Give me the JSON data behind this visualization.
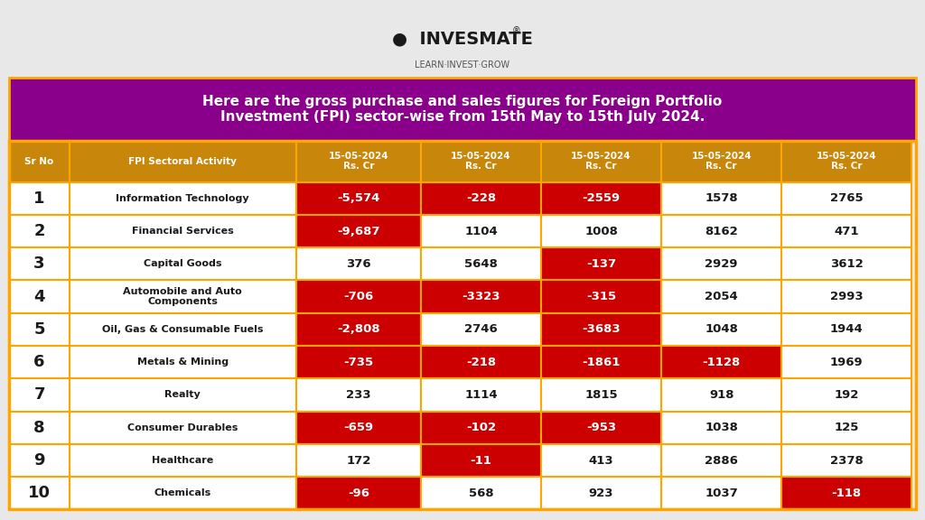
{
  "title": "Here are the gross purchase and sales figures for Foreign Portfolio\nInvestment (FPI) sector-wise from 15th May to 15th July 2024.",
  "header_bg": "#8B008B",
  "header_text_color": "#FFFFFF",
  "col_header_bg": "#C8860A",
  "col_header_text": "#FFFFFF",
  "row_bg": "#FFFFFF",
  "row_alt_bg": "#FFFFFF",
  "border_color": "#FFA500",
  "negative_bg": "#CC0000",
  "negative_text": "#FFFFFF",
  "positive_bg": "#FFFFFF",
  "positive_text": "#1A1A1A",
  "sr_no_col_bg": "#FFFFFF",
  "columns": [
    "Sr No",
    "FPI Sectoral Activity",
    "15-05-2024\nRs. Cr",
    "15-05-2024\nRs. Cr",
    "15-05-2024\nRs. Cr",
    "15-05-2024\nRs. Cr",
    "15-05-2024\nRs. Cr"
  ],
  "rows": [
    [
      1,
      "Information Technology",
      "-5,574",
      "-228",
      "-2559",
      "1578",
      "2765"
    ],
    [
      2,
      "Financial Services",
      "-9,687",
      "1104",
      "1008",
      "8162",
      "471"
    ],
    [
      3,
      "Capital Goods",
      "376",
      "5648",
      "-137",
      "2929",
      "3612"
    ],
    [
      4,
      "Automobile and Auto\nComponents",
      "-706",
      "-3323",
      "-315",
      "2054",
      "2993"
    ],
    [
      5,
      "Oil, Gas & Consumable Fuels",
      "-2,808",
      "2746",
      "-3683",
      "1048",
      "1944"
    ],
    [
      6,
      "Metals & Mining",
      "-735",
      "-218",
      "-1861",
      "-1128",
      "1969"
    ],
    [
      7,
      "Realty",
      "233",
      "1114",
      "1815",
      "918",
      "192"
    ],
    [
      8,
      "Consumer Durables",
      "-659",
      "-102",
      "-953",
      "1038",
      "125"
    ],
    [
      9,
      "Healthcare",
      "172",
      "-11",
      "413",
      "2886",
      "2378"
    ],
    [
      10,
      "Chemicals",
      "-96",
      "568",
      "923",
      "1037",
      "-118"
    ]
  ],
  "logo_text": "INVESMATE",
  "logo_subtext": "LEARN·INVEST·GROW",
  "outer_bg": "#E8E8E8",
  "table_outer_border": "#FFA500"
}
